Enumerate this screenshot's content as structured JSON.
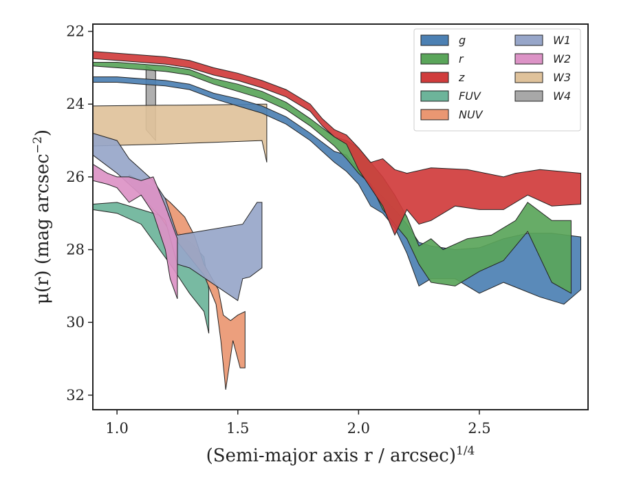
{
  "chart_data": {
    "type": "area",
    "title": "",
    "xlabel": "(Semi-major axis r / arcsec)",
    "xlabel_superscript": "1/4",
    "ylabel": "μ(r) (mag arcsec",
    "ylabel_superscript": "−2",
    "ylabel_suffix": ")",
    "xlim": [
      0.9,
      2.95
    ],
    "ylim": [
      32.4,
      21.8
    ],
    "y_inverted": true,
    "grid": false,
    "x_ticks": [
      1.0,
      1.5,
      2.0,
      2.5
    ],
    "x_tick_labels": [
      "1.0",
      "1.5",
      "2.0",
      "2.5"
    ],
    "y_ticks": [
      22,
      24,
      26,
      28,
      30,
      32
    ],
    "y_tick_labels": [
      "22",
      "24",
      "26",
      "28",
      "30",
      "32"
    ],
    "legend": {
      "location": "top-right",
      "columns": 2
    },
    "series": [
      {
        "name": "W4",
        "color": "#a8a8a8",
        "upper": [
          [
            1.12,
            22.95
          ],
          [
            1.16,
            23.1
          ]
        ],
        "lower": [
          [
            1.16,
            25.0
          ],
          [
            1.12,
            24.7
          ]
        ]
      },
      {
        "name": "W3",
        "color": "#dfc29b",
        "upper": [
          [
            0.9,
            24.05
          ],
          [
            1.2,
            24.03
          ],
          [
            1.4,
            24.02
          ],
          [
            1.6,
            24.0
          ],
          [
            1.62,
            24.0
          ]
        ],
        "lower": [
          [
            1.62,
            25.6
          ],
          [
            1.6,
            25.0
          ],
          [
            1.4,
            25.05
          ],
          [
            1.2,
            25.1
          ],
          [
            0.9,
            25.15
          ]
        ]
      },
      {
        "name": "FUV",
        "color": "#6db49a",
        "upper": [
          [
            0.9,
            26.75
          ],
          [
            1.0,
            26.7
          ],
          [
            1.1,
            26.9
          ],
          [
            1.2,
            27.1
          ],
          [
            1.25,
            27.5
          ],
          [
            1.32,
            27.9
          ],
          [
            1.36,
            28.2
          ],
          [
            1.38,
            29.1
          ],
          [
            1.38,
            30.3
          ]
        ],
        "lower": [
          [
            1.38,
            30.3
          ],
          [
            1.36,
            29.7
          ],
          [
            1.3,
            29.2
          ],
          [
            1.22,
            28.4
          ],
          [
            1.1,
            27.3
          ],
          [
            1.0,
            27.0
          ],
          [
            0.9,
            26.9
          ]
        ]
      },
      {
        "name": "NUV",
        "color": "#ea9772",
        "upper": [
          [
            1.05,
            25.95
          ],
          [
            1.15,
            26.3
          ],
          [
            1.22,
            26.7
          ],
          [
            1.28,
            27.1
          ],
          [
            1.32,
            27.6
          ],
          [
            1.36,
            28.4
          ],
          [
            1.42,
            29.1
          ],
          [
            1.44,
            29.8
          ],
          [
            1.47,
            29.95
          ],
          [
            1.5,
            29.8
          ],
          [
            1.53,
            29.7
          ],
          [
            1.53,
            31.2
          ]
        ],
        "lower": [
          [
            1.53,
            31.25
          ],
          [
            1.51,
            31.25
          ],
          [
            1.48,
            30.5
          ],
          [
            1.45,
            31.85
          ],
          [
            1.43,
            30.5
          ],
          [
            1.41,
            29.5
          ],
          [
            1.36,
            28.7
          ],
          [
            1.3,
            28.2
          ],
          [
            1.24,
            27.7
          ],
          [
            1.18,
            27.1
          ],
          [
            1.1,
            26.5
          ],
          [
            1.05,
            26.1
          ]
        ]
      },
      {
        "name": "W1",
        "color": "#97a6c9",
        "upper": [
          [
            0.9,
            24.8
          ],
          [
            1.0,
            25.0
          ],
          [
            1.05,
            25.5
          ],
          [
            1.1,
            25.8
          ],
          [
            1.15,
            26.1
          ],
          [
            1.2,
            26.6
          ],
          [
            1.25,
            27.6
          ],
          [
            1.52,
            27.3
          ],
          [
            1.58,
            26.7
          ],
          [
            1.6,
            26.7
          ],
          [
            1.6,
            28.5
          ]
        ],
        "lower": [
          [
            1.6,
            28.5
          ],
          [
            1.55,
            28.75
          ],
          [
            1.52,
            28.8
          ],
          [
            1.5,
            29.4
          ],
          [
            1.3,
            28.5
          ],
          [
            1.25,
            28.4
          ],
          [
            1.2,
            27.2
          ],
          [
            1.15,
            26.9
          ],
          [
            1.1,
            26.5
          ],
          [
            1.0,
            25.9
          ],
          [
            0.9,
            25.4
          ]
        ]
      },
      {
        "name": "W2",
        "color": "#dc93c6",
        "upper": [
          [
            0.9,
            25.65
          ],
          [
            0.96,
            25.9
          ],
          [
            1.0,
            26.0
          ],
          [
            1.05,
            26.0
          ],
          [
            1.1,
            26.1
          ],
          [
            1.15,
            26.0
          ],
          [
            1.2,
            26.8
          ],
          [
            1.25,
            27.7
          ],
          [
            1.25,
            29.35
          ]
        ],
        "lower": [
          [
            1.25,
            29.35
          ],
          [
            1.22,
            28.8
          ],
          [
            1.2,
            28.0
          ],
          [
            1.15,
            27.0
          ],
          [
            1.1,
            26.5
          ],
          [
            1.05,
            26.7
          ],
          [
            1.0,
            26.3
          ],
          [
            0.96,
            26.2
          ],
          [
            0.9,
            26.1
          ]
        ]
      },
      {
        "name": "g",
        "color": "#4c80b3",
        "upper": [
          [
            0.9,
            23.25
          ],
          [
            1.0,
            23.25
          ],
          [
            1.1,
            23.3
          ],
          [
            1.2,
            23.35
          ],
          [
            1.3,
            23.45
          ],
          [
            1.4,
            23.7
          ],
          [
            1.5,
            23.85
          ],
          [
            1.6,
            24.05
          ],
          [
            1.7,
            24.35
          ],
          [
            1.8,
            24.8
          ],
          [
            1.9,
            25.3
          ],
          [
            1.95,
            25.4
          ],
          [
            2.0,
            25.8
          ],
          [
            2.05,
            26.2
          ],
          [
            2.1,
            26.55
          ],
          [
            2.15,
            26.9
          ],
          [
            2.2,
            27.3
          ],
          [
            2.25,
            27.8
          ],
          [
            2.3,
            27.9
          ],
          [
            2.4,
            28.0
          ],
          [
            2.5,
            27.95
          ],
          [
            2.6,
            27.7
          ],
          [
            2.7,
            27.55
          ],
          [
            2.8,
            27.55
          ],
          [
            2.92,
            27.65
          ],
          [
            2.92,
            29.1
          ]
        ],
        "lower": [
          [
            2.92,
            29.1
          ],
          [
            2.85,
            29.5
          ],
          [
            2.75,
            29.3
          ],
          [
            2.6,
            28.9
          ],
          [
            2.5,
            29.2
          ],
          [
            2.4,
            28.8
          ],
          [
            2.3,
            28.8
          ],
          [
            2.25,
            29.0
          ],
          [
            2.2,
            28.1
          ],
          [
            2.15,
            27.4
          ],
          [
            2.1,
            27.0
          ],
          [
            2.05,
            26.8
          ],
          [
            2.0,
            26.2
          ],
          [
            1.95,
            25.85
          ],
          [
            1.9,
            25.6
          ],
          [
            1.8,
            25.0
          ],
          [
            1.7,
            24.55
          ],
          [
            1.6,
            24.25
          ],
          [
            1.5,
            24.05
          ],
          [
            1.4,
            23.85
          ],
          [
            1.3,
            23.6
          ],
          [
            1.2,
            23.5
          ],
          [
            1.1,
            23.45
          ],
          [
            1.0,
            23.4
          ],
          [
            0.9,
            23.4
          ]
        ]
      },
      {
        "name": "r",
        "color": "#5aa55a",
        "upper": [
          [
            0.9,
            22.85
          ],
          [
            1.0,
            22.85
          ],
          [
            1.1,
            22.9
          ],
          [
            1.2,
            22.95
          ],
          [
            1.3,
            23.05
          ],
          [
            1.4,
            23.3
          ],
          [
            1.5,
            23.45
          ],
          [
            1.6,
            23.65
          ],
          [
            1.7,
            23.95
          ],
          [
            1.8,
            24.4
          ],
          [
            1.9,
            24.9
          ],
          [
            1.95,
            25.0
          ],
          [
            2.0,
            25.2
          ],
          [
            2.05,
            25.6
          ],
          [
            2.1,
            26.0
          ],
          [
            2.15,
            26.5
          ],
          [
            2.2,
            27.1
          ],
          [
            2.25,
            27.9
          ],
          [
            2.3,
            27.7
          ],
          [
            2.35,
            28.0
          ],
          [
            2.45,
            27.7
          ],
          [
            2.55,
            27.6
          ],
          [
            2.65,
            27.2
          ],
          [
            2.7,
            26.7
          ],
          [
            2.8,
            27.2
          ],
          [
            2.88,
            27.2
          ],
          [
            2.88,
            29.2
          ]
        ],
        "lower": [
          [
            2.88,
            29.2
          ],
          [
            2.8,
            28.9
          ],
          [
            2.7,
            27.5
          ],
          [
            2.6,
            28.3
          ],
          [
            2.5,
            28.6
          ],
          [
            2.4,
            29.0
          ],
          [
            2.3,
            28.9
          ],
          [
            2.25,
            28.4
          ],
          [
            2.2,
            27.7
          ],
          [
            2.15,
            27.3
          ],
          [
            2.1,
            26.9
          ],
          [
            2.05,
            26.2
          ],
          [
            2.0,
            25.9
          ],
          [
            1.95,
            25.5
          ],
          [
            1.9,
            25.15
          ],
          [
            1.8,
            24.6
          ],
          [
            1.7,
            24.15
          ],
          [
            1.6,
            23.85
          ],
          [
            1.5,
            23.65
          ],
          [
            1.4,
            23.45
          ],
          [
            1.3,
            23.2
          ],
          [
            1.2,
            23.1
          ],
          [
            1.1,
            23.05
          ],
          [
            1.0,
            23.0
          ],
          [
            0.9,
            22.95
          ]
        ]
      },
      {
        "name": "z",
        "color": "#d03c3c",
        "upper": [
          [
            0.9,
            22.55
          ],
          [
            1.0,
            22.6
          ],
          [
            1.1,
            22.65
          ],
          [
            1.2,
            22.7
          ],
          [
            1.3,
            22.8
          ],
          [
            1.4,
            23.0
          ],
          [
            1.5,
            23.15
          ],
          [
            1.6,
            23.35
          ],
          [
            1.7,
            23.6
          ],
          [
            1.8,
            24.0
          ],
          [
            1.85,
            24.4
          ],
          [
            1.9,
            24.7
          ],
          [
            1.95,
            24.85
          ],
          [
            2.0,
            25.2
          ],
          [
            2.05,
            25.6
          ],
          [
            2.1,
            25.5
          ],
          [
            2.15,
            25.8
          ],
          [
            2.2,
            25.9
          ],
          [
            2.3,
            25.75
          ],
          [
            2.45,
            25.8
          ],
          [
            2.6,
            26.0
          ],
          [
            2.65,
            25.9
          ],
          [
            2.75,
            25.8
          ],
          [
            2.92,
            25.9
          ],
          [
            2.92,
            26.75
          ]
        ],
        "lower": [
          [
            2.92,
            26.75
          ],
          [
            2.8,
            26.8
          ],
          [
            2.7,
            26.5
          ],
          [
            2.6,
            26.9
          ],
          [
            2.5,
            26.9
          ],
          [
            2.4,
            26.8
          ],
          [
            2.3,
            27.2
          ],
          [
            2.25,
            27.3
          ],
          [
            2.2,
            26.9
          ],
          [
            2.15,
            27.6
          ],
          [
            2.1,
            26.8
          ],
          [
            2.05,
            26.3
          ],
          [
            2.0,
            25.8
          ],
          [
            1.95,
            25.1
          ],
          [
            1.9,
            24.9
          ],
          [
            1.85,
            24.6
          ],
          [
            1.8,
            24.2
          ],
          [
            1.7,
            23.8
          ],
          [
            1.6,
            23.55
          ],
          [
            1.5,
            23.35
          ],
          [
            1.4,
            23.2
          ],
          [
            1.3,
            23.0
          ],
          [
            1.2,
            22.9
          ],
          [
            1.1,
            22.85
          ],
          [
            1.0,
            22.8
          ],
          [
            0.9,
            22.75
          ]
        ]
      }
    ],
    "legend_order": [
      "g",
      "r",
      "z",
      "FUV",
      "NUV",
      "W1",
      "W2",
      "W3",
      "W4"
    ]
  }
}
